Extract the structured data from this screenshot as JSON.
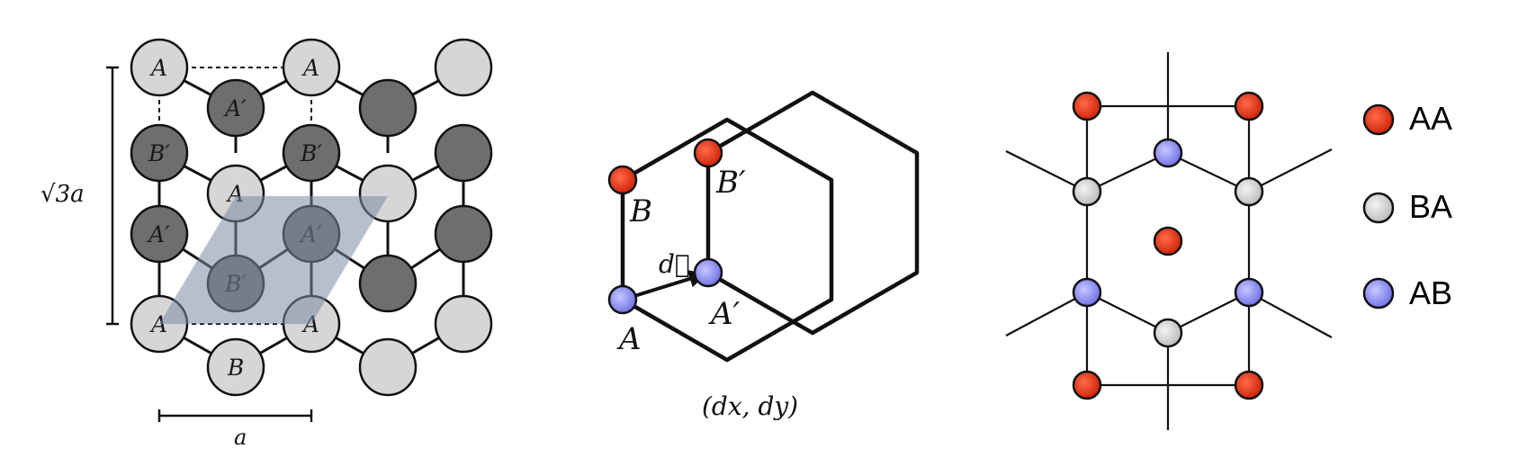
{
  "panel_a": {
    "atoms": [
      {
        "label": "A",
        "shade": "light"
      },
      {
        "label": "A",
        "shade": "light"
      },
      {
        "label": "",
        "shade": "light"
      },
      {
        "label": "A′",
        "shade": "dark"
      },
      {
        "label": "",
        "shade": "dark"
      },
      {
        "label": "B′",
        "shade": "dark"
      },
      {
        "label": "B′",
        "shade": "dark"
      },
      {
        "label": "",
        "shade": "dark"
      },
      {
        "label": "A",
        "shade": "light"
      },
      {
        "label": "",
        "shade": "light"
      },
      {
        "label": "A′",
        "shade": "dark"
      },
      {
        "label": "A′",
        "shade": "dark"
      },
      {
        "label": "",
        "shade": "dark"
      },
      {
        "label": "B′",
        "shade": "dark"
      },
      {
        "label": "",
        "shade": "dark"
      },
      {
        "label": "A",
        "shade": "light"
      },
      {
        "label": "A",
        "shade": "light"
      },
      {
        "label": "",
        "shade": "light"
      },
      {
        "label": "B",
        "shade": "light"
      },
      {
        "label": "",
        "shade": "light"
      }
    ],
    "height_label": "√3a",
    "width_label": "a"
  },
  "panel_b": {
    "label_A": "A",
    "label_B": "B",
    "label_Aprime": "A′",
    "label_Bprime": "B′",
    "vector_label": "d⃗",
    "caption": "(dx, dy)"
  },
  "legend": {
    "items": [
      {
        "label": "AA",
        "color": "#dd2a10"
      },
      {
        "label": "BA",
        "color": "#d9d9d9"
      },
      {
        "label": "AB",
        "color": "#8e90f2"
      }
    ]
  },
  "colors": {
    "atom_light": "#d6d6d6",
    "atom_dark": "#6e6e6e",
    "unit_cell": "#7c8ba8",
    "aa": "#dd2a10",
    "ba": "#d9d9d9",
    "ab": "#8e90f2"
  }
}
